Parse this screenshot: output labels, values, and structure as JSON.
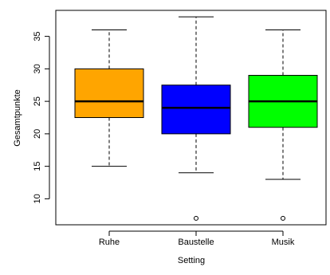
{
  "chart_data": {
    "type": "boxplot",
    "title": "",
    "xlabel": "Setting",
    "ylabel": "Gesamtpunkte",
    "ylim": [
      6,
      39
    ],
    "yticks": [
      10,
      15,
      20,
      25,
      30,
      35
    ],
    "grid": false,
    "categories": [
      "Ruhe",
      "Baustelle",
      "Musik"
    ],
    "colors": [
      "#ffa500",
      "#0000ff",
      "#00ff00"
    ],
    "boxes": [
      {
        "category": "Ruhe",
        "whisker_low": 15,
        "q1": 22.5,
        "median": 25,
        "q3": 30,
        "whisker_high": 36,
        "outliers": []
      },
      {
        "category": "Baustelle",
        "whisker_low": 14,
        "q1": 20,
        "median": 24,
        "q3": 27.5,
        "whisker_high": 38,
        "outliers": [
          7
        ]
      },
      {
        "category": "Musik",
        "whisker_low": 13,
        "q1": 21,
        "median": 25,
        "q3": 29,
        "whisker_high": 36,
        "outliers": [
          7
        ]
      }
    ]
  }
}
